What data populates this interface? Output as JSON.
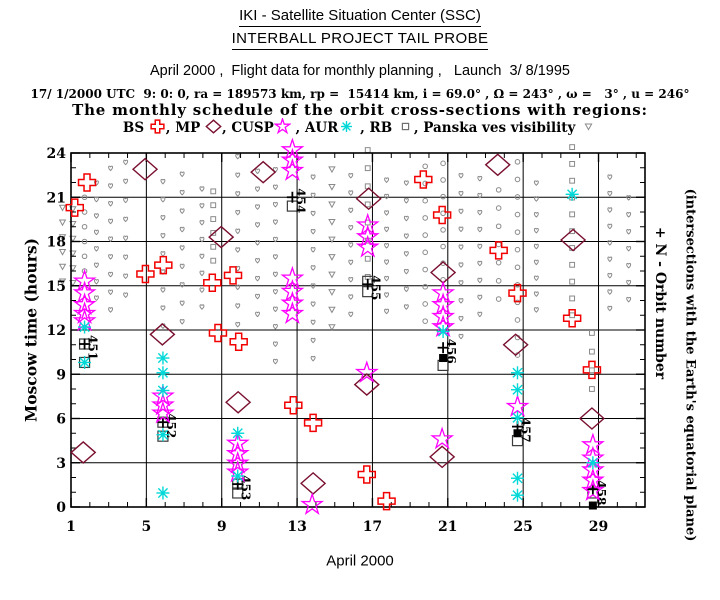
{
  "header": {
    "title": "IKI - Satellite Situation Center (SSC)",
    "subtitle": "INTERBALL PROJECT TAIL PROBE",
    "flight_line": "April 2000 ,  Flight data for monthly planning ,   Launch  3/ 8/1995",
    "utc_line": "17/ 1/2000 UTC  9: 0: 0, ra = 189573 km, rp =  15414 km, i = 69.0° , Ω = 243° , ω =   3° , u = 246°",
    "schedule_line": "The monthly schedule of the orbit cross-sections with regions:"
  },
  "legend": {
    "items": [
      {
        "label": "BS ",
        "symbol": "cross",
        "sep": ", "
      },
      {
        "label": "MP ",
        "symbol": "diamond",
        "sep": ", "
      },
      {
        "label": "CUSP",
        "symbol": "star",
        "sep": " , "
      },
      {
        "label": "AUR",
        "symbol": "asterisk",
        "sep": " , "
      },
      {
        "label": "RB ",
        "symbol": "square",
        "sep": ", "
      },
      {
        "label": "Panska ves visibility ",
        "symbol": "tri",
        "sep": ""
      }
    ]
  },
  "colors": {
    "cross": "#f20000",
    "diamond": "#7a1030",
    "star": "#ff00ff",
    "asterisk": "#00d8d8",
    "square": "#6f6f6f",
    "tri": "#8a8a8a",
    "gray_mark": "#8a8a8a",
    "black": "#000000"
  },
  "chart_data": {
    "type": "scatter",
    "xlabel": "April 2000",
    "ylabel": "Moscow time (hours)",
    "right_label_1": "+ N  -  Orbit number",
    "right_label_2": "(intersections with the Earth's equatorial plane)",
    "xlim": [
      1,
      31.5
    ],
    "ylim": [
      0,
      24
    ],
    "xticks_major": [
      1,
      5,
      9,
      13,
      17,
      21,
      25,
      29
    ],
    "yticks_major": [
      0,
      3,
      6,
      9,
      12,
      15,
      18,
      21,
      24
    ],
    "grid_vertical_days": [
      5,
      9,
      13,
      17,
      21,
      25,
      29
    ],
    "grid_horizontal_hours": [
      3,
      6,
      9,
      12,
      15,
      18,
      21
    ],
    "series": [
      {
        "name": "BS",
        "symbol": "cross",
        "color": "#f20000",
        "points": [
          [
            1.2,
            20.3
          ],
          [
            1.85,
            22.0
          ],
          [
            4.95,
            15.8
          ],
          [
            5.9,
            16.4
          ],
          [
            8.5,
            15.2
          ],
          [
            9.6,
            15.7
          ],
          [
            8.8,
            11.8
          ],
          [
            9.9,
            11.2
          ],
          [
            12.8,
            6.9
          ],
          [
            13.85,
            5.7
          ],
          [
            16.7,
            2.2
          ],
          [
            17.75,
            0.4
          ],
          [
            19.7,
            22.2
          ],
          [
            20.7,
            19.8
          ],
          [
            23.7,
            17.4
          ],
          [
            24.7,
            14.5
          ],
          [
            27.6,
            12.8
          ],
          [
            28.65,
            9.3
          ]
        ]
      },
      {
        "name": "MP",
        "symbol": "diamond",
        "color": "#7a1030",
        "points": [
          [
            1.65,
            3.7
          ],
          [
            4.93,
            22.9
          ],
          [
            5.85,
            11.7
          ],
          [
            8.97,
            18.3
          ],
          [
            9.87,
            7.1
          ],
          [
            11.2,
            22.7
          ],
          [
            13.85,
            1.6
          ],
          [
            16.8,
            20.9
          ],
          [
            16.7,
            8.3
          ],
          [
            20.75,
            15.9
          ],
          [
            20.7,
            3.4
          ],
          [
            23.65,
            23.2
          ],
          [
            24.6,
            11.0
          ],
          [
            27.65,
            18.1
          ],
          [
            28.65,
            6.0
          ]
        ]
      },
      {
        "name": "CUSP",
        "symbol": "star",
        "color": "#ff00ff",
        "points": [
          [
            1.72,
            15.3
          ],
          [
            1.72,
            14.5
          ],
          [
            1.72,
            13.7
          ],
          [
            1.72,
            13.1
          ],
          [
            1.72,
            12.6
          ],
          [
            5.88,
            7.5
          ],
          [
            5.88,
            6.9
          ],
          [
            5.88,
            6.35
          ],
          [
            9.85,
            4.3
          ],
          [
            9.85,
            3.6
          ],
          [
            9.85,
            2.95
          ],
          [
            9.85,
            2.35
          ],
          [
            12.75,
            24.2
          ],
          [
            12.75,
            23.5
          ],
          [
            12.75,
            22.8
          ],
          [
            12.75,
            15.5
          ],
          [
            12.75,
            14.6
          ],
          [
            12.75,
            13.8
          ],
          [
            12.75,
            13.1
          ],
          [
            13.8,
            0.15
          ],
          [
            16.75,
            19.1
          ],
          [
            16.75,
            18.3
          ],
          [
            16.75,
            17.6
          ],
          [
            16.7,
            9.1
          ],
          [
            20.75,
            14.5
          ],
          [
            20.75,
            13.7
          ],
          [
            20.75,
            12.9
          ],
          [
            20.75,
            12.2
          ],
          [
            20.7,
            4.6
          ],
          [
            24.7,
            6.8
          ],
          [
            28.7,
            4.2
          ],
          [
            28.7,
            3.3
          ],
          [
            28.7,
            2.5
          ],
          [
            28.7,
            1.8
          ],
          [
            28.7,
            1.1
          ]
        ]
      },
      {
        "name": "AUR",
        "symbol": "asterisk",
        "color": "#00d8d8",
        "points": [
          [
            1.72,
            12.2
          ],
          [
            1.72,
            9.8
          ],
          [
            5.88,
            10.1
          ],
          [
            5.88,
            9.1
          ],
          [
            5.88,
            7.9
          ],
          [
            5.88,
            4.9
          ],
          [
            5.88,
            0.95
          ],
          [
            9.85,
            5.0
          ],
          [
            9.85,
            2.1
          ],
          [
            20.75,
            11.9
          ],
          [
            24.7,
            9.1
          ],
          [
            24.7,
            7.95
          ],
          [
            24.7,
            6.05
          ],
          [
            24.7,
            1.95
          ],
          [
            24.7,
            0.8
          ],
          [
            27.6,
            21.2
          ],
          [
            28.7,
            3.0
          ]
        ]
      }
    ],
    "orbit_crossings": [
      {
        "n": "451",
        "day": 1.72,
        "plus": 11.05,
        "open": [
          11.05,
          9.8
        ],
        "filled": []
      },
      {
        "n": "452",
        "day": 5.88,
        "plus": 5.75,
        "open": [
          5.75,
          4.8
        ],
        "filled": []
      },
      {
        "n": "453",
        "day": 9.85,
        "plus": 1.55,
        "open": [
          1.55,
          0.95
        ],
        "filled": []
      },
      {
        "n": "454",
        "day": 12.75,
        "plus": 21.0,
        "open": [
          20.4
        ],
        "filled": []
      },
      {
        "n": "455",
        "day": 16.75,
        "plus": 15.1,
        "open": [
          15.3,
          14.6
        ],
        "filled": []
      },
      {
        "n": "456",
        "day": 20.75,
        "plus": 10.8,
        "open": [
          9.6
        ],
        "filled": [
          10.1
        ]
      },
      {
        "n": "457",
        "day": 24.7,
        "plus": 5.45,
        "open": [
          4.5
        ],
        "filled": [
          5.0
        ]
      },
      {
        "n": "458",
        "day": 28.7,
        "plus": 1.2,
        "open": [
          0.95
        ],
        "filled": [
          0.1
        ]
      }
    ],
    "visibility_columns": [
      {
        "d": 0.55,
        "g": "tri",
        "top": 20.3,
        "bot": 15.3,
        "n": 6
      },
      {
        "d": 1.1,
        "g": "tri",
        "top": 20.2,
        "bot": 15.2,
        "n": 6
      },
      {
        "d": 1.72,
        "g": "circ",
        "top": 21.0,
        "bot": 16.0,
        "n": 6
      },
      {
        "d": 2.35,
        "g": "heart",
        "top": 22.0,
        "bot": 14.2,
        "n": 8
      },
      {
        "d": 3.1,
        "g": "heart",
        "top": 23.0,
        "bot": 13.4,
        "n": 9
      },
      {
        "d": 3.9,
        "g": "heart",
        "top": 23.4,
        "bot": 14.4,
        "n": 8
      },
      {
        "d": 5.88,
        "g": "heart",
        "top": 22.1,
        "bot": 12.3,
        "n": 9
      },
      {
        "d": 6.9,
        "g": "heart",
        "top": 22.6,
        "bot": 12.6,
        "n": 9
      },
      {
        "d": 7.95,
        "g": "heart",
        "top": 21.6,
        "bot": 13.6,
        "n": 8
      },
      {
        "d": 8.55,
        "g": "sq",
        "top": 21.4,
        "bot": 16.7,
        "n": 6
      },
      {
        "d": 9.85,
        "g": "heart",
        "top": 23.8,
        "bot": 12.4,
        "n": 10
      },
      {
        "d": 10.9,
        "g": "heart",
        "top": 22.8,
        "bot": 13.1,
        "n": 9
      },
      {
        "d": 11.85,
        "g": "heart",
        "top": 22.9,
        "bot": 9.9,
        "n": 12
      },
      {
        "d": 13.85,
        "g": "heart",
        "top": 22.4,
        "bot": 10.1,
        "n": 11
      },
      {
        "d": 14.85,
        "g": "tri",
        "top": 22.9,
        "bot": 12.2,
        "n": 10
      },
      {
        "d": 15.85,
        "g": "heart",
        "top": 22.5,
        "bot": 13.1,
        "n": 9
      },
      {
        "d": 16.75,
        "g": "sq",
        "top": 24.2,
        "bot": 15.6,
        "n": 8
      },
      {
        "d": 17.75,
        "g": "heart",
        "top": 22.2,
        "bot": 13.3,
        "n": 9
      },
      {
        "d": 18.8,
        "g": "heart",
        "top": 22.0,
        "bot": 13.6,
        "n": 8
      },
      {
        "d": 19.8,
        "g": "circ",
        "top": 23.1,
        "bot": 12.6,
        "n": 10
      },
      {
        "d": 20.75,
        "g": "circ",
        "top": 23.3,
        "bot": 15.4,
        "n": 8
      },
      {
        "d": 21.7,
        "g": "heart",
        "top": 22.5,
        "bot": 11.6,
        "n": 10
      },
      {
        "d": 22.7,
        "g": "heart",
        "top": 22.3,
        "bot": 13.1,
        "n": 9
      },
      {
        "d": 23.7,
        "g": "circ",
        "top": 21.5,
        "bot": 14.1,
        "n": 7
      },
      {
        "d": 24.7,
        "g": "circ",
        "top": 23.4,
        "bot": 10.3,
        "n": 12
      },
      {
        "d": 25.7,
        "g": "heart",
        "top": 22.0,
        "bot": 13.4,
        "n": 9
      },
      {
        "d": 27.6,
        "g": "sq",
        "top": 24.4,
        "bot": 13.0,
        "n": 11
      },
      {
        "d": 28.65,
        "g": "sq",
        "top": 11.8,
        "bot": 8.0,
        "n": 4
      },
      {
        "d": 29.6,
        "g": "heart",
        "top": 22.4,
        "bot": 13.5,
        "n": 9
      },
      {
        "d": 30.6,
        "g": "heart",
        "top": 21.0,
        "bot": 14.1,
        "n": 7
      }
    ]
  }
}
